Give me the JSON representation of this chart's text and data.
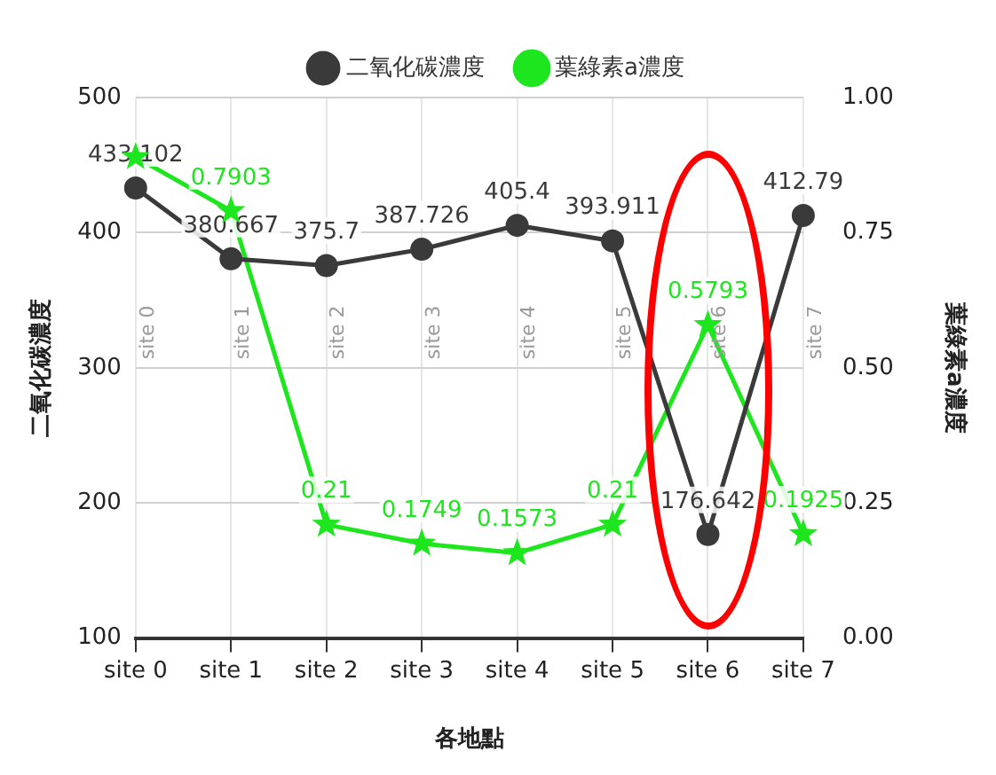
{
  "chart_data": {
    "type": "line",
    "categories": [
      "site 0",
      "site 1",
      "site 2",
      "site 3",
      "site 4",
      "site 5",
      "site 6",
      "site 7"
    ],
    "xlabel": "各地點",
    "ylabel": "二氧化碳濃度",
    "y2label": "葉綠素a濃度",
    "series": [
      {
        "name": "二氧化碳濃度",
        "color": "#3a3a3a",
        "marker": "circle",
        "values": [
          433.102,
          380.667,
          375.7,
          387.726,
          405.4,
          393.911,
          176.642,
          412.79
        ],
        "value_labels": [
          "433.102",
          "380.667",
          "375.7",
          "387.726",
          "405.4",
          "393.911",
          "176.642",
          "412.79"
        ]
      },
      {
        "name": "葉綠素a濃度",
        "color": "#1ee61e",
        "marker": "star",
        "axis": "y2",
        "values": [
          0.89,
          0.7903,
          0.21,
          0.1749,
          0.1573,
          0.21,
          0.5793,
          0.1925
        ],
        "value_labels": [
          null,
          "0.7903",
          "0.21",
          "0.1749",
          "0.1573",
          "0.21",
          "0.5793",
          "0.1925"
        ]
      }
    ],
    "ylim": [
      100,
      500
    ],
    "yticks": [
      100,
      200,
      300,
      400,
      500
    ],
    "y2lim": [
      0,
      1
    ],
    "y2ticks": [
      {
        "value": 0,
        "label": "0.00"
      },
      {
        "value": 0.25,
        "label": "0.25"
      },
      {
        "value": 0.5,
        "label": "0.50"
      },
      {
        "value": 0.75,
        "label": "0.75"
      },
      {
        "value": 1,
        "label": "1.00"
      }
    ],
    "annotations": [
      "site 0",
      "site 1",
      "site 2",
      "site 3",
      "site 4",
      "site 5",
      "site 6",
      "site 7"
    ],
    "grid": true,
    "legend": "top",
    "line_style": "solid"
  }
}
